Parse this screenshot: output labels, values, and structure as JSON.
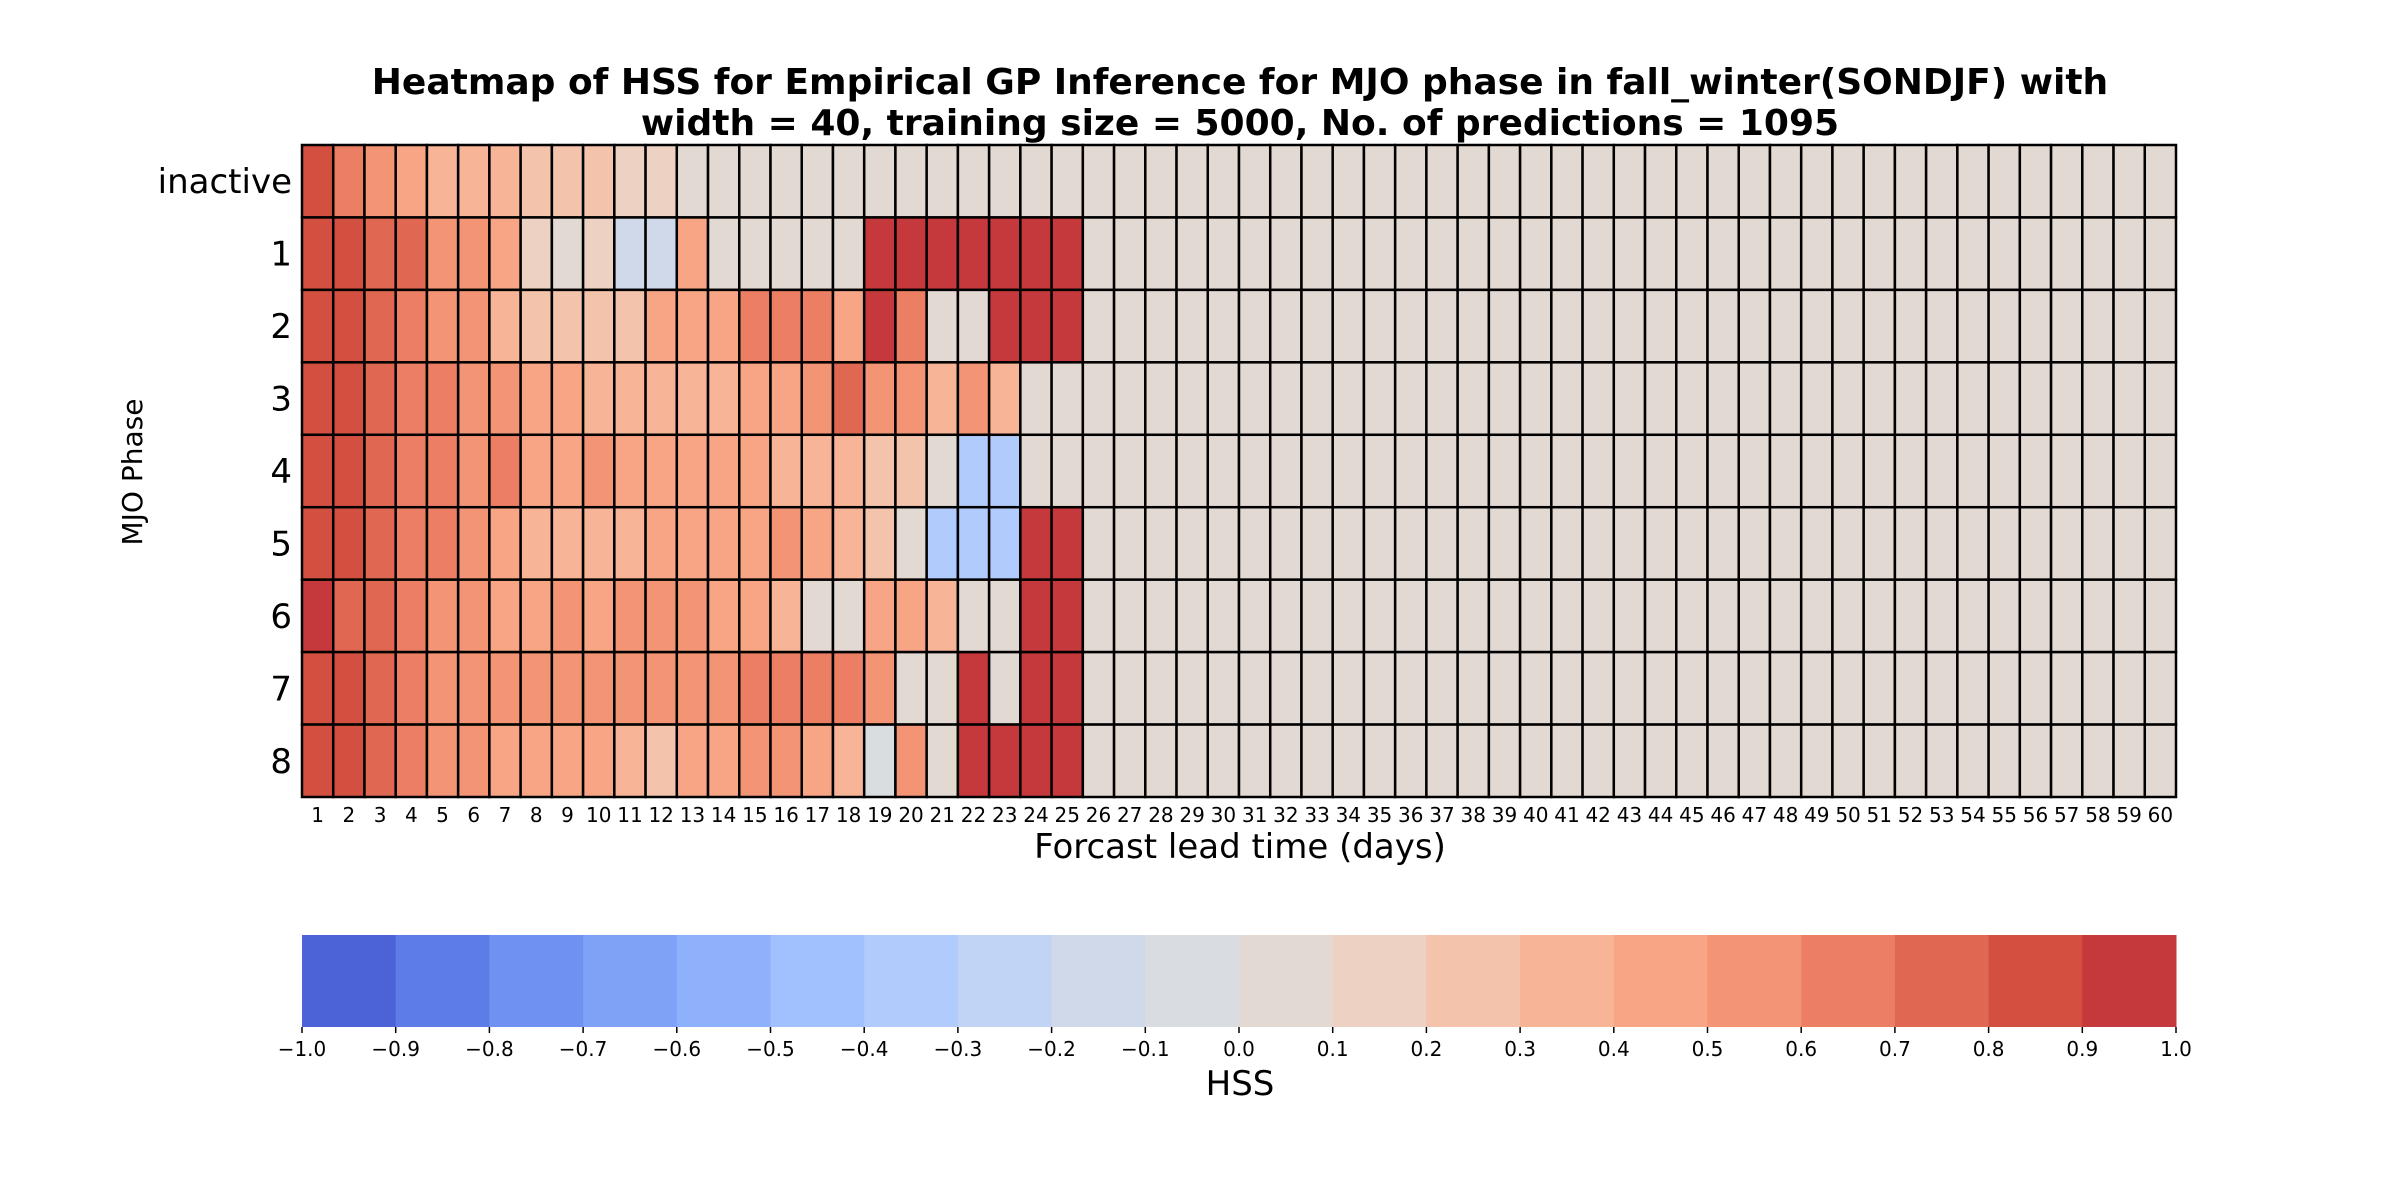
{
  "chart_data": {
    "type": "heatmap",
    "title": [
      "Heatmap of HSS for Empirical GP Inference for MJO phase in fall_winter(SONDJF) with",
      "width = 40, training size = 5000, No. of predictions = 1095"
    ],
    "xlabel": "Forcast lead time (days)",
    "ylabel": "MJO Phase",
    "x": [
      1,
      2,
      3,
      4,
      5,
      6,
      7,
      8,
      9,
      10,
      11,
      12,
      13,
      14,
      15,
      16,
      17,
      18,
      19,
      20,
      21,
      22,
      23,
      24,
      25,
      26,
      27,
      28,
      29,
      30,
      31,
      32,
      33,
      34,
      35,
      36,
      37,
      38,
      39,
      40,
      41,
      42,
      43,
      44,
      45,
      46,
      47,
      48,
      49,
      50,
      51,
      52,
      53,
      54,
      55,
      56,
      57,
      58,
      59,
      60
    ],
    "y": [
      "inactive",
      "1",
      "2",
      "3",
      "4",
      "5",
      "6",
      "7",
      "8"
    ],
    "z_note": "values shown for lead days 1-25; lead days 26-60 are 0.0 for every phase",
    "z": [
      [
        0.85,
        0.65,
        0.55,
        0.45,
        0.35,
        0.35,
        0.32,
        0.28,
        0.2,
        0.2,
        0.15,
        0.15,
        0.05,
        0.05,
        0.05,
        0.05,
        0.05,
        0.05,
        0.05,
        0.05,
        0.05,
        0.05,
        0.05,
        0.05,
        0.05
      ],
      [
        0.82,
        0.82,
        0.75,
        0.72,
        0.55,
        0.55,
        0.45,
        0.15,
        0.08,
        0.15,
        -0.15,
        -0.12,
        0.45,
        0.05,
        0.05,
        0.05,
        0.05,
        0.05,
        0.95,
        0.95,
        0.95,
        0.95,
        0.95,
        0.95,
        0.95
      ],
      [
        0.82,
        0.8,
        0.72,
        0.65,
        0.55,
        0.5,
        0.35,
        0.25,
        0.25,
        0.25,
        0.25,
        0.42,
        0.42,
        0.45,
        0.62,
        0.62,
        0.62,
        0.45,
        0.95,
        0.65,
        0.05,
        0.05,
        0.95,
        0.95,
        0.95
      ],
      [
        0.82,
        0.8,
        0.72,
        0.68,
        0.62,
        0.55,
        0.5,
        0.45,
        0.42,
        0.3,
        0.3,
        0.35,
        0.35,
        0.35,
        0.42,
        0.45,
        0.55,
        0.75,
        0.55,
        0.55,
        0.32,
        0.55,
        0.35,
        0.05,
        0.05
      ],
      [
        0.82,
        0.8,
        0.72,
        0.65,
        0.62,
        0.55,
        0.6,
        0.45,
        0.45,
        0.5,
        0.45,
        0.42,
        0.45,
        0.42,
        0.45,
        0.35,
        0.32,
        0.3,
        0.25,
        0.25,
        0.05,
        -0.35,
        -0.32,
        0.05,
        0.05
      ],
      [
        0.82,
        0.8,
        0.72,
        0.65,
        0.62,
        0.55,
        0.45,
        0.35,
        0.35,
        0.3,
        0.35,
        0.42,
        0.42,
        0.45,
        0.45,
        0.55,
        0.45,
        0.35,
        0.25,
        0.05,
        -0.32,
        -0.35,
        -0.32,
        0.95,
        0.95
      ],
      [
        0.95,
        0.72,
        0.7,
        0.62,
        0.55,
        0.5,
        0.45,
        0.45,
        0.5,
        0.45,
        0.5,
        0.55,
        0.55,
        0.45,
        0.45,
        0.35,
        0.05,
        0.05,
        0.45,
        0.42,
        0.35,
        0.05,
        0.05,
        0.95,
        0.95
      ],
      [
        0.82,
        0.82,
        0.72,
        0.62,
        0.55,
        0.55,
        0.5,
        0.5,
        0.55,
        0.55,
        0.55,
        0.5,
        0.5,
        0.55,
        0.65,
        0.62,
        0.65,
        0.65,
        0.55,
        0.05,
        0.05,
        0.95,
        0.05,
        0.95,
        0.95
      ],
      [
        0.82,
        0.82,
        0.72,
        0.65,
        0.5,
        0.5,
        0.45,
        0.4,
        0.4,
        0.45,
        0.35,
        0.2,
        0.4,
        0.45,
        0.5,
        0.5,
        0.45,
        0.3,
        -0.08,
        0.5,
        0.05,
        0.95,
        0.9,
        0.95,
        0.95
      ]
    ],
    "colorbar": {
      "label": "HSS",
      "vmin": -1.0,
      "vmax": 1.0,
      "ticks": [
        "−1.0",
        "−0.9",
        "−0.8",
        "−0.7",
        "−0.6",
        "−0.5",
        "−0.4",
        "−0.3",
        "−0.2",
        "−0.1",
        "0.0",
        "0.1",
        "0.2",
        "0.3",
        "0.4",
        "0.5",
        "0.6",
        "0.7",
        "0.8",
        "0.9",
        "1.0"
      ],
      "colors": [
        "#4b63d6",
        "#5d7ce6",
        "#6f91f1",
        "#7fa1f6",
        "#8fb1fc",
        "#a0c0fe",
        "#b1cbfc",
        "#c1d4f5",
        "#cfd9ea",
        "#d9dce1",
        "#e3d9d3",
        "#edd1c2",
        "#f4c3ab",
        "#f7b497",
        "#f7a584",
        "#f39475",
        "#eb7e63",
        "#e06853",
        "#d35040",
        "#c5383b"
      ]
    }
  }
}
